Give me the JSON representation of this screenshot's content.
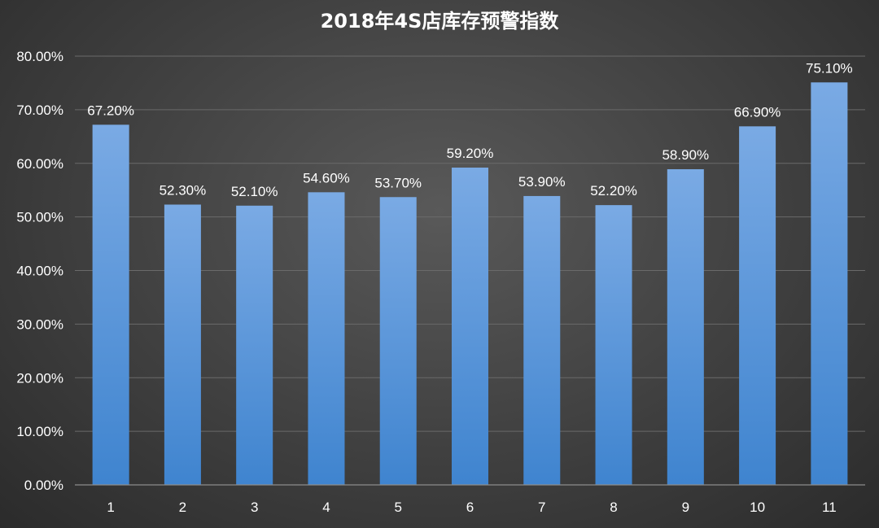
{
  "colors": {
    "bar_top": "#7aaae4",
    "bar_bottom": "#3f84cf",
    "gridline": "#6a6a6a",
    "axis_line": "#8c8c8c",
    "text": "#ffffff"
  },
  "chart_data": {
    "type": "bar",
    "title": "2018年4S店库存预警指数",
    "xlabel": "",
    "ylabel": "",
    "categories": [
      "1",
      "2",
      "3",
      "4",
      "5",
      "6",
      "7",
      "8",
      "9",
      "10",
      "11"
    ],
    "values": [
      67.2,
      52.3,
      52.1,
      54.6,
      53.7,
      59.2,
      53.9,
      52.2,
      58.9,
      66.9,
      75.1
    ],
    "data_labels": [
      "67.20%",
      "52.30%",
      "52.10%",
      "54.60%",
      "53.70%",
      "59.20%",
      "53.90%",
      "52.20%",
      "58.90%",
      "66.90%",
      "75.10%"
    ],
    "ylim": [
      0,
      80
    ],
    "yticks": [
      0,
      10,
      20,
      30,
      40,
      50,
      60,
      70,
      80
    ],
    "ytick_labels": [
      "0.00%",
      "10.00%",
      "20.00%",
      "30.00%",
      "40.00%",
      "50.00%",
      "60.00%",
      "70.00%",
      "80.00%"
    ],
    "grid": true,
    "legend": "none"
  }
}
